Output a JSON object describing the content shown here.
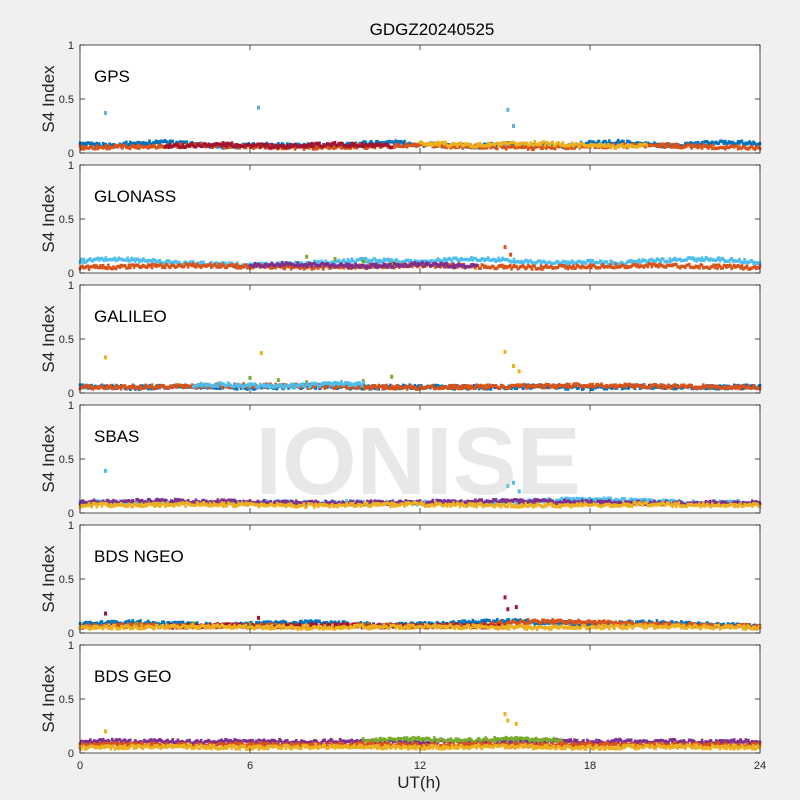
{
  "title": "GDGZ20240525",
  "watermark": "IONISE",
  "chart_data": {
    "type": "scatter",
    "xlabel": "UT(h)",
    "xlim": [
      0,
      24
    ],
    "xticks": [
      "0",
      "6",
      "12",
      "18",
      "24"
    ],
    "xtick_values": [
      0,
      6,
      12,
      18,
      24
    ],
    "ylim": [
      0,
      1
    ],
    "yticks": [
      "0",
      "0.5",
      "1"
    ],
    "ytick_values": [
      0,
      0.5,
      1
    ],
    "grid": false,
    "palette": [
      "#0072BD",
      "#D95319",
      "#EDB120",
      "#7E2F8E",
      "#77AC30",
      "#4DBEEE",
      "#A2142F"
    ],
    "panels": [
      {
        "name": "GPS",
        "ylabel": "S4 Index",
        "series": [
          {
            "color": "#0072BD",
            "x": [
              0,
              1,
              2,
              3,
              4,
              5,
              6,
              7,
              8,
              9,
              10,
              11,
              12,
              13,
              14,
              15,
              16,
              17,
              18,
              19,
              20,
              21,
              22,
              23,
              24
            ],
            "y": [
              0.08,
              0.07,
              0.09,
              0.1,
              0.08,
              0.06,
              0.07,
              0.08,
              0.07,
              0.06,
              0.09,
              0.1,
              0.08,
              0.07,
              0.06,
              0.08,
              0.07,
              0.06,
              0.09,
              0.1,
              0.08,
              0.07,
              0.09,
              0.1,
              0.08
            ]
          },
          {
            "color": "#D95319",
            "x": [
              0,
              2,
              4,
              6,
              8,
              10,
              12,
              14,
              16,
              18,
              20,
              22,
              24
            ],
            "y": [
              0.05,
              0.06,
              0.07,
              0.06,
              0.05,
              0.06,
              0.07,
              0.06,
              0.05,
              0.06,
              0.07,
              0.06,
              0.05
            ]
          },
          {
            "color": "#A2142F",
            "x": [
              3,
              4,
              5,
              6,
              7,
              8,
              9,
              10,
              11
            ],
            "y": [
              0.06,
              0.07,
              0.08,
              0.07,
              0.06,
              0.07,
              0.08,
              0.07,
              0.06
            ]
          },
          {
            "color": "#EDB120",
            "x": [
              12,
              13,
              14,
              15,
              16,
              17,
              18,
              19,
              20
            ],
            "y": [
              0.09,
              0.08,
              0.07,
              0.08,
              0.09,
              0.08,
              0.07,
              0.06,
              0.07
            ]
          },
          {
            "color": "#5FB0E0",
            "x": [
              0.9,
              6.3,
              15.1,
              15.3
            ],
            "y": [
              0.37,
              0.42,
              0.4,
              0.25
            ]
          }
        ]
      },
      {
        "name": "GLONASS",
        "ylabel": "S4 Index",
        "series": [
          {
            "color": "#4DBEEE",
            "x": [
              0,
              1,
              2,
              3,
              4,
              5,
              6,
              7,
              8,
              9,
              10,
              11,
              12,
              13,
              14,
              15,
              16,
              17,
              18,
              19,
              20,
              21,
              22,
              23,
              24
            ],
            "y": [
              0.11,
              0.13,
              0.12,
              0.1,
              0.09,
              0.08,
              0.07,
              0.08,
              0.09,
              0.1,
              0.12,
              0.11,
              0.1,
              0.12,
              0.13,
              0.12,
              0.1,
              0.09,
              0.1,
              0.09,
              0.11,
              0.12,
              0.13,
              0.12,
              0.1
            ]
          },
          {
            "color": "#D95319",
            "x": [
              0,
              2,
              4,
              6,
              8,
              10,
              12,
              14,
              16,
              18,
              20,
              22,
              24
            ],
            "y": [
              0.05,
              0.06,
              0.07,
              0.06,
              0.05,
              0.06,
              0.07,
              0.06,
              0.05,
              0.06,
              0.07,
              0.06,
              0.05
            ]
          },
          {
            "color": "#77AC30",
            "x": [
              8,
              9,
              10,
              11,
              12
            ],
            "y": [
              0.15,
              0.13,
              0.11,
              0.09,
              0.08
            ]
          },
          {
            "color": "#7E2F8E",
            "x": [
              6,
              7,
              8,
              9,
              10,
              11,
              12,
              13,
              14
            ],
            "y": [
              0.07,
              0.08,
              0.08,
              0.07,
              0.06,
              0.07,
              0.08,
              0.07,
              0.06
            ]
          },
          {
            "color": "#D95319",
            "x": [
              15.0,
              15.2
            ],
            "y": [
              0.24,
              0.17
            ]
          }
        ]
      },
      {
        "name": "GALILEO",
        "ylabel": "S4 Index",
        "series": [
          {
            "color": "#0072BD",
            "x": [
              0,
              2,
              4,
              6,
              8,
              10,
              12,
              14,
              16,
              18,
              20,
              22,
              24
            ],
            "y": [
              0.06,
              0.05,
              0.06,
              0.05,
              0.06,
              0.05,
              0.06,
              0.05,
              0.06,
              0.05,
              0.06,
              0.05,
              0.06
            ]
          },
          {
            "color": "#77AC30",
            "x": [
              6,
              7,
              8,
              9,
              10,
              11
            ],
            "y": [
              0.14,
              0.12,
              0.1,
              0.09,
              0.11,
              0.15
            ]
          },
          {
            "color": "#D95319",
            "x": [
              0,
              3,
              6,
              9,
              12,
              15,
              18,
              21,
              24
            ],
            "y": [
              0.05,
              0.06,
              0.07,
              0.06,
              0.05,
              0.06,
              0.07,
              0.06,
              0.05
            ]
          },
          {
            "color": "#4DBEEE",
            "x": [
              4,
              5,
              6,
              7,
              8,
              9,
              10
            ],
            "y": [
              0.07,
              0.08,
              0.07,
              0.06,
              0.07,
              0.09,
              0.08
            ]
          },
          {
            "color": "#EDB120",
            "x": [
              0.9,
              6.4,
              15.0,
              15.3,
              15.5
            ],
            "y": [
              0.33,
              0.37,
              0.38,
              0.25,
              0.2
            ]
          }
        ]
      },
      {
        "name": "SBAS",
        "ylabel": "S4 Index",
        "series": [
          {
            "color": "#4DBEEE",
            "x": [
              0,
              1,
              2,
              3,
              4,
              5,
              6,
              7,
              8,
              9,
              10,
              11,
              12,
              13,
              14,
              15,
              16,
              17,
              18,
              19,
              20,
              21,
              22,
              23,
              24
            ],
            "y": [
              0.09,
              0.1,
              0.09,
              0.1,
              0.09,
              0.1,
              0.09,
              0.1,
              0.09,
              0.1,
              0.09,
              0.1,
              0.09,
              0.1,
              0.09,
              0.1,
              0.11,
              0.12,
              0.13,
              0.12,
              0.11,
              0.1,
              0.09,
              0.1,
              0.09
            ]
          },
          {
            "color": "#7E2F8E",
            "x": [
              0,
              3,
              6,
              9,
              12,
              15,
              18,
              21,
              24
            ],
            "y": [
              0.1,
              0.11,
              0.1,
              0.09,
              0.1,
              0.11,
              0.1,
              0.09,
              0.1
            ]
          },
          {
            "color": "#EDB120",
            "x": [
              0,
              4,
              8,
              12,
              16,
              20,
              24
            ],
            "y": [
              0.07,
              0.08,
              0.07,
              0.08,
              0.07,
              0.08,
              0.07
            ]
          },
          {
            "color": "#4DBEEE",
            "x": [
              0.9,
              15.1,
              15.3,
              15.5
            ],
            "y": [
              0.39,
              0.25,
              0.28,
              0.2
            ]
          }
        ]
      },
      {
        "name": "BDS NGEO",
        "ylabel": "S4 Index",
        "series": [
          {
            "color": "#0072BD",
            "x": [
              0,
              1,
              2,
              3,
              4,
              5,
              6,
              7,
              8,
              9,
              10,
              11,
              12,
              13,
              14,
              15,
              16,
              17,
              18,
              19,
              20,
              21,
              22,
              23,
              24
            ],
            "y": [
              0.08,
              0.09,
              0.1,
              0.09,
              0.08,
              0.07,
              0.08,
              0.09,
              0.1,
              0.09,
              0.08,
              0.07,
              0.08,
              0.09,
              0.1,
              0.11,
              0.1,
              0.09,
              0.08,
              0.09,
              0.1,
              0.09,
              0.08,
              0.07,
              0.06
            ]
          },
          {
            "color": "#D95319",
            "x": [
              0,
              2,
              4,
              6,
              8,
              10,
              12,
              14,
              16,
              18,
              20,
              22,
              24
            ],
            "y": [
              0.06,
              0.07,
              0.06,
              0.07,
              0.06,
              0.07,
              0.06,
              0.07,
              0.11,
              0.1,
              0.08,
              0.07,
              0.06
            ]
          },
          {
            "color": "#A2142F",
            "x": [
              3,
              5,
              7,
              9,
              11,
              13,
              15
            ],
            "y": [
              0.06,
              0.07,
              0.06,
              0.07,
              0.06,
              0.07,
              0.06
            ]
          },
          {
            "color": "#77AC30",
            "x": [
              2,
              4,
              6,
              8,
              10
            ],
            "y": [
              0.08,
              0.09,
              0.08,
              0.07,
              0.08
            ]
          },
          {
            "color": "#EDB120",
            "x": [
              0,
              4,
              8,
              12,
              16,
              20,
              24
            ],
            "y": [
              0.05,
              0.06,
              0.05,
              0.06,
              0.05,
              0.06,
              0.05
            ]
          },
          {
            "color": "#A2142F",
            "x": [
              0.9,
              6.3,
              15.0,
              15.1,
              15.4
            ],
            "y": [
              0.18,
              0.14,
              0.33,
              0.22,
              0.24
            ]
          }
        ]
      },
      {
        "name": "BDS GEO",
        "ylabel": "S4 Index",
        "series": [
          {
            "color": "#7E2F8E",
            "x": [
              0,
              1,
              2,
              3,
              4,
              5,
              6,
              7,
              8,
              9,
              10,
              11,
              12,
              13,
              14,
              15,
              16,
              17,
              18,
              19,
              20,
              21,
              22,
              23,
              24
            ],
            "y": [
              0.1,
              0.11,
              0.1,
              0.11,
              0.1,
              0.11,
              0.1,
              0.11,
              0.1,
              0.11,
              0.1,
              0.11,
              0.1,
              0.11,
              0.1,
              0.11,
              0.1,
              0.11,
              0.1,
              0.11,
              0.1,
              0.11,
              0.1,
              0.11,
              0.1
            ]
          },
          {
            "color": "#77AC30",
            "x": [
              10,
              11,
              12,
              13,
              14,
              15,
              16,
              17
            ],
            "y": [
              0.12,
              0.12,
              0.13,
              0.12,
              0.12,
              0.13,
              0.12,
              0.12
            ]
          },
          {
            "color": "#D95319",
            "x": [
              0,
              2,
              4,
              6,
              8,
              10,
              12,
              14,
              16,
              18,
              20,
              22,
              24
            ],
            "y": [
              0.07,
              0.08,
              0.07,
              0.08,
              0.07,
              0.08,
              0.07,
              0.08,
              0.07,
              0.08,
              0.07,
              0.08,
              0.07
            ]
          },
          {
            "color": "#EDB120",
            "x": [
              0,
              3,
              6,
              9,
              12,
              15,
              18,
              21,
              24
            ],
            "y": [
              0.05,
              0.06,
              0.05,
              0.06,
              0.05,
              0.06,
              0.05,
              0.06,
              0.05
            ]
          },
          {
            "color": "#EDB120",
            "x": [
              0.9,
              15.0,
              15.1,
              15.4
            ],
            "y": [
              0.2,
              0.36,
              0.3,
              0.27
            ]
          }
        ]
      }
    ]
  }
}
